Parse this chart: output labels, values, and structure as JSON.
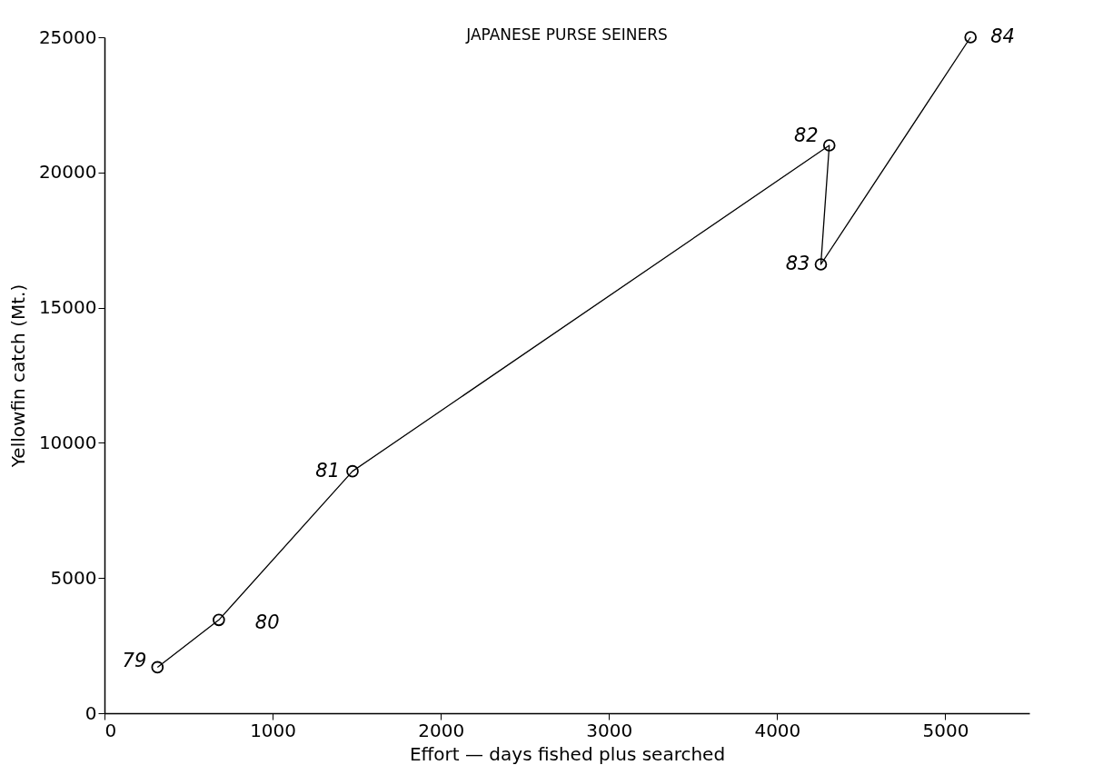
{
  "chart_data": {
    "type": "line",
    "title": "JAPANESE PURSE SEINERS",
    "xlabel": "Effort — days fished plus searched",
    "ylabel": "Yellowfin catch (Mt.)",
    "x": [
      315,
      680,
      1475,
      4310,
      4260,
      5150
    ],
    "series": [
      {
        "color": "#000000",
        "values": [
          1700,
          3450,
          8950,
          21000,
          16600,
          25000
        ]
      }
    ],
    "xlim": [
      0,
      5500
    ],
    "xticks": [
      0,
      1000,
      2000,
      3000,
      4000,
      5000
    ],
    "ylim": [
      0,
      25000
    ],
    "yticks": [
      0,
      5000,
      10000,
      15000,
      20000,
      25000
    ],
    "marker": "circle",
    "line_style": "solid",
    "grid": false,
    "annotations": [
      {
        "text": "79",
        "x": 315,
        "y": 1700
      },
      {
        "text": "80",
        "x": 680,
        "y": 3450
      },
      {
        "text": "81",
        "x": 1475,
        "y": 8950
      },
      {
        "text": "82",
        "x": 4310,
        "y": 21000
      },
      {
        "text": "83",
        "x": 4260,
        "y": 16600
      },
      {
        "text": "84",
        "x": 5150,
        "y": 25000
      }
    ]
  }
}
